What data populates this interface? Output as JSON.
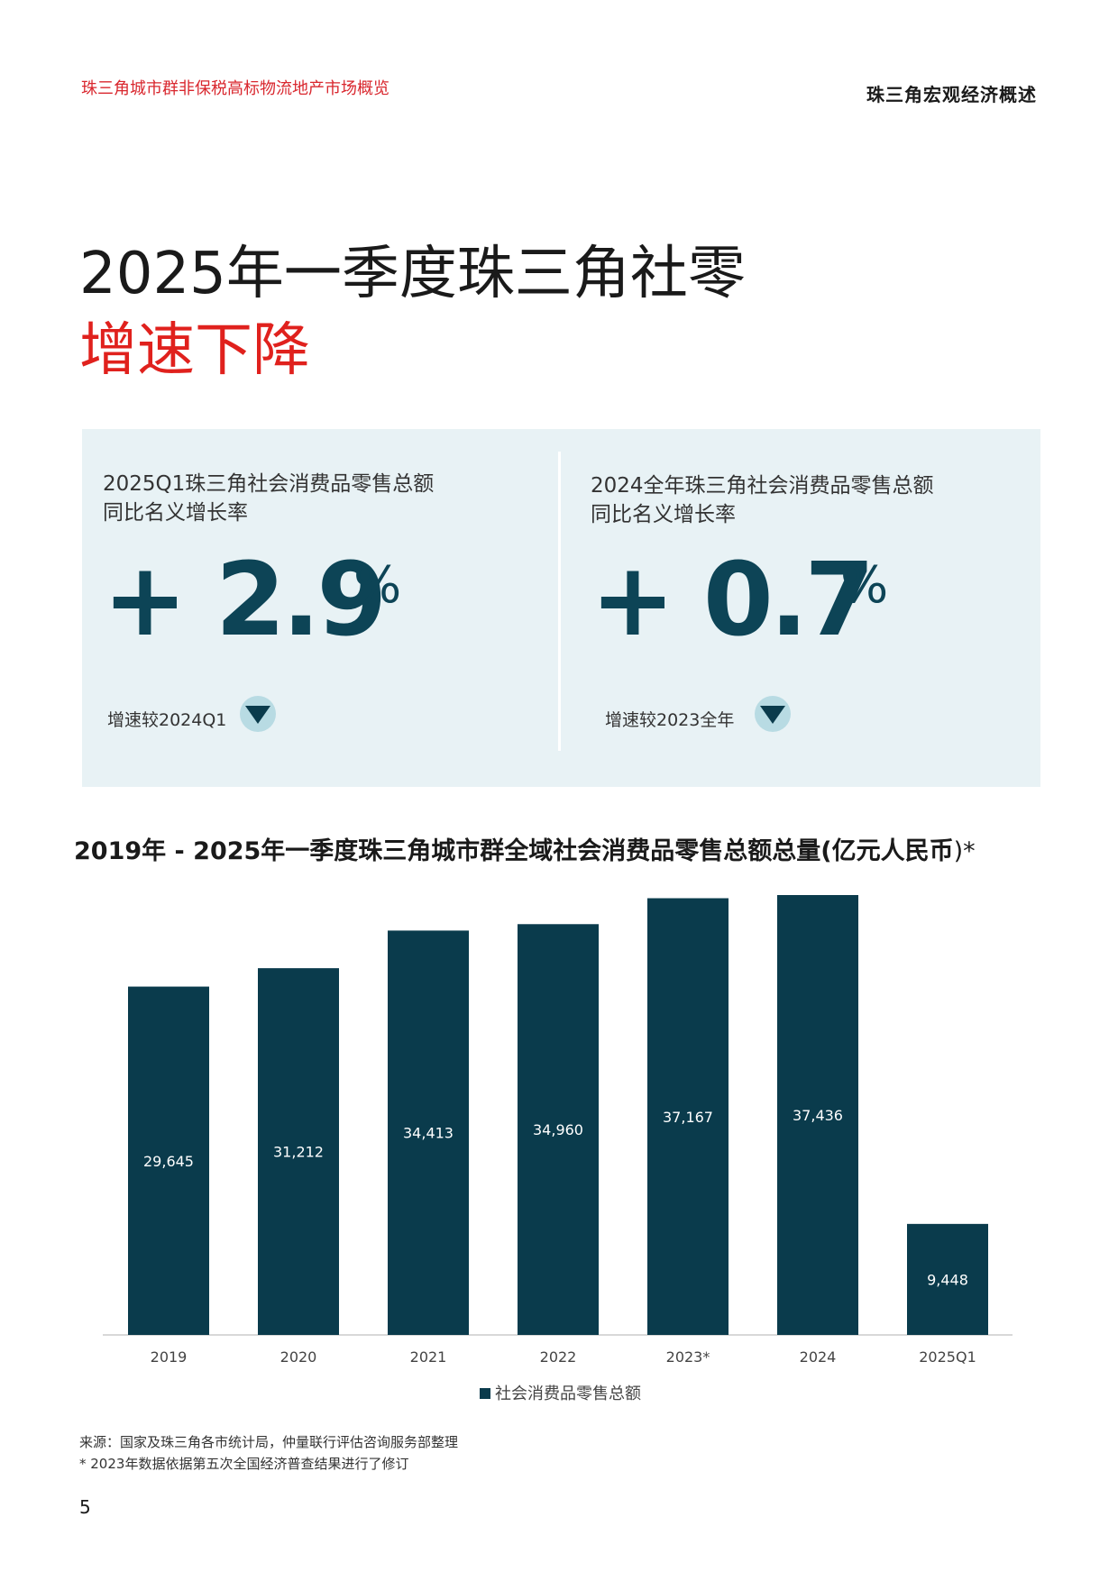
{
  "header": {
    "left": "珠三角城市群非保税高标物流地产市场概览",
    "right": "珠三角宏观经济概述"
  },
  "title": {
    "line1": "2025年一季度珠三角社零",
    "line2": "增速下降"
  },
  "kpis": [
    {
      "label_line1": "2025Q1珠三角社会消费品零售总额",
      "label_line2": "同比名义增长率",
      "value": "+ 2.9",
      "unit": "%",
      "compare": "增速较2024Q1",
      "trend_icon": "down-triangle-icon"
    },
    {
      "label_line1": "2024全年珠三角社会消费品零售总额",
      "label_line2": "同比名义增长率",
      "value": "+ 0.7",
      "unit": "%",
      "compare": "增速较2023全年",
      "trend_icon": "down-triangle-icon"
    }
  ],
  "chart_title": {
    "main": "2019年 - 2025年一季度珠三角城市群全域社会消费品零售总额总量(亿元人民币",
    "suffix": ")*"
  },
  "chart_data": {
    "type": "bar",
    "categories": [
      "2019",
      "2020",
      "2021",
      "2022",
      "2023*",
      "2024",
      "2025Q1"
    ],
    "series": [
      {
        "name": "社会消费品零售总额",
        "values": [
          29645,
          31212,
          34413,
          34960,
          37167,
          37436,
          9448
        ],
        "labels": [
          "29,645",
          "31,212",
          "34,413",
          "34,960",
          "37,167",
          "37,436",
          "9,448"
        ]
      }
    ],
    "ylim": [
      0,
      37436
    ],
    "bar_color": "#0a3b4c",
    "legend": "bottom-center"
  },
  "notes": {
    "source": "来源：国家及珠三角各市统计局，仲量联行评估咨询服务部整理",
    "footnote": "* 2023年数据依据第五次全国经济普查结果进行了修订"
  },
  "page_number": "5",
  "colors": {
    "accent_red": "#e0211d",
    "primary_dark": "#0a3b4c",
    "panel_bg": "#e8f2f5"
  }
}
